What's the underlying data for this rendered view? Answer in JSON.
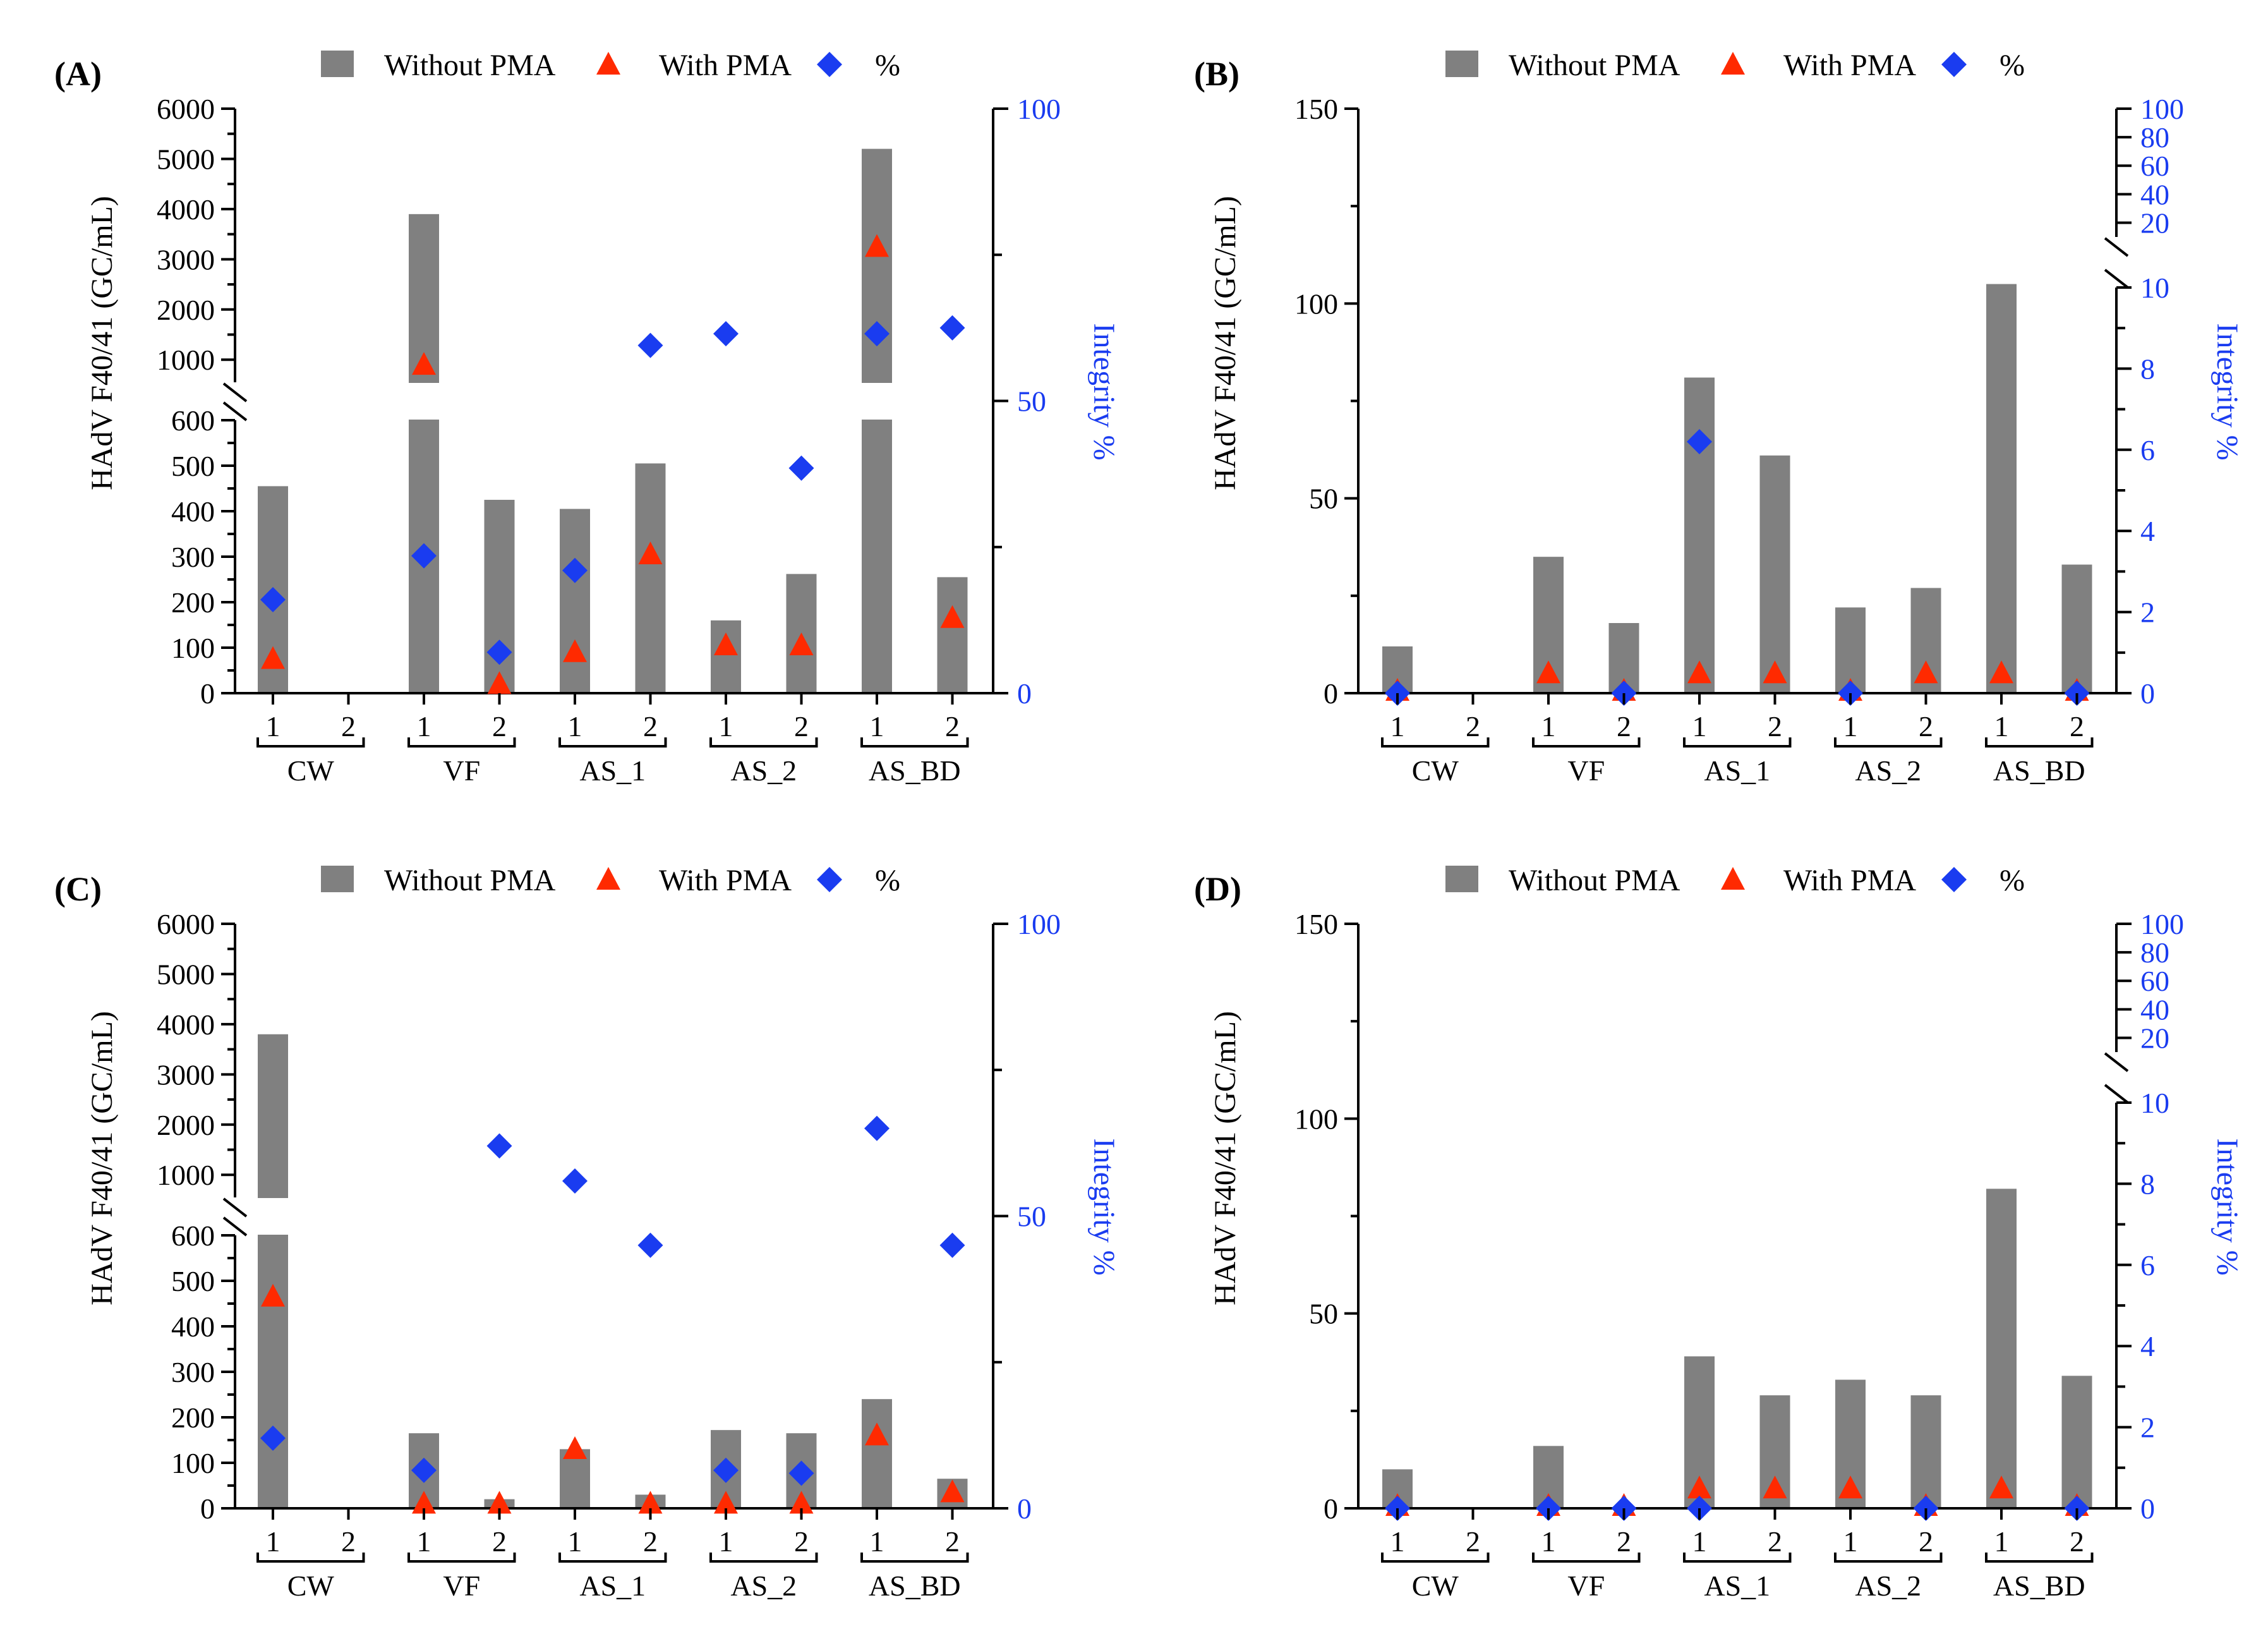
{
  "legend": {
    "without_label": "Without PMA",
    "with_label": "With PMA",
    "pct_label": "%"
  },
  "colors": {
    "bar": "#808080",
    "triangle": "#ff2a00",
    "diamond": "#1a3cf0",
    "axis_blue": "#1a3cf0"
  },
  "chart_data": [
    {
      "panel": "(A)",
      "type": "bar",
      "broken_axis": true,
      "ylabel": "HAdV F40/41 (GC/mL)",
      "y2label": "Integrity %",
      "y_lower_ticks": [
        0,
        100,
        200,
        300,
        400,
        500,
        600
      ],
      "y_upper_ticks": [
        1000,
        2000,
        3000,
        4000,
        5000,
        6000
      ],
      "y2_ticks": [
        0,
        50,
        100
      ],
      "ylim_lower": [
        0,
        600
      ],
      "ylim_upper": [
        550,
        6000
      ],
      "y2lim": [
        0,
        100
      ],
      "groups": [
        "CW",
        "VF",
        "AS_1",
        "AS_2",
        "AS_BD"
      ],
      "subcategories": [
        "1",
        "2"
      ],
      "without_pma": [
        455,
        null,
        3900,
        425,
        405,
        505,
        160,
        262,
        5200,
        255
      ],
      "with_pma": [
        70,
        null,
        850,
        15,
        85,
        300,
        100,
        100,
        3200,
        160
      ],
      "integrity_pct": [
        16,
        null,
        23.5,
        7,
        21,
        59.5,
        61.5,
        38.5,
        61.5,
        62.5
      ]
    },
    {
      "panel": "(B)",
      "type": "bar",
      "broken_axis": false,
      "ylabel": "HAdV F40/41 (GC/mL)",
      "y2label": "Integrity %",
      "y_ticks": [
        0,
        50,
        100,
        150
      ],
      "ylim": [
        0,
        150
      ],
      "y2_lower_ticks": [
        0,
        2,
        4,
        6,
        8,
        10
      ],
      "y2_upper_ticks": [
        20,
        40,
        60,
        80,
        100
      ],
      "y2lim_lower": [
        0,
        10
      ],
      "y2lim_upper": [
        10,
        100
      ],
      "groups": [
        "CW",
        "VF",
        "AS_1",
        "AS_2",
        "AS_BD"
      ],
      "subcategories": [
        "1",
        "2"
      ],
      "without_pma": [
        12,
        null,
        35,
        18,
        81,
        61,
        22,
        27,
        105,
        33
      ],
      "with_pma": [
        0,
        null,
        4.5,
        0,
        4.5,
        4.5,
        0,
        4.5,
        4.5,
        0
      ],
      "integrity_pct": [
        0,
        null,
        null,
        0,
        6.2,
        null,
        0,
        null,
        null,
        0
      ]
    },
    {
      "panel": "(C)",
      "type": "bar",
      "broken_axis": true,
      "ylabel": "HAdV F40/41 (GC/mL)",
      "y2label": "Integrity %",
      "y_lower_ticks": [
        0,
        100,
        200,
        300,
        400,
        500,
        600
      ],
      "y_upper_ticks": [
        1000,
        2000,
        3000,
        4000,
        5000,
        6000
      ],
      "y2_ticks": [
        0,
        50,
        100
      ],
      "ylim_lower": [
        0,
        600
      ],
      "ylim_upper": [
        550,
        6000
      ],
      "y2lim": [
        0,
        100
      ],
      "groups": [
        "CW",
        "VF",
        "AS_1",
        "AS_2",
        "AS_BD"
      ],
      "subcategories": [
        "1",
        "2"
      ],
      "without_pma": [
        3800,
        null,
        165,
        20,
        130,
        30,
        172,
        165,
        240,
        65
      ],
      "with_pma": [
        460,
        null,
        5,
        5,
        125,
        5,
        5,
        5,
        155,
        30
      ],
      "integrity_pct": [
        12,
        null,
        6.5,
        62,
        56,
        45,
        6.5,
        6,
        65,
        45
      ]
    },
    {
      "panel": "(D)",
      "type": "bar",
      "broken_axis": false,
      "ylabel": "HAdV F40/41 (GC/mL)",
      "y2label": "Integrity %",
      "y_ticks": [
        0,
        50,
        100,
        150
      ],
      "ylim": [
        0,
        150
      ],
      "y2_lower_ticks": [
        0,
        2,
        4,
        6,
        8,
        10
      ],
      "y2_upper_ticks": [
        20,
        40,
        60,
        80,
        100
      ],
      "y2lim_lower": [
        0,
        10
      ],
      "y2lim_upper": [
        10,
        100
      ],
      "groups": [
        "CW",
        "VF",
        "AS_1",
        "AS_2",
        "AS_BD"
      ],
      "subcategories": [
        "1",
        "2"
      ],
      "without_pma": [
        10,
        null,
        16,
        null,
        39,
        29,
        33,
        29,
        82,
        34
      ],
      "with_pma": [
        0,
        null,
        0,
        0,
        4.5,
        4.5,
        4.5,
        0,
        4.5,
        0
      ],
      "integrity_pct": [
        0,
        null,
        0,
        0,
        0,
        null,
        null,
        0,
        null,
        0
      ]
    }
  ]
}
